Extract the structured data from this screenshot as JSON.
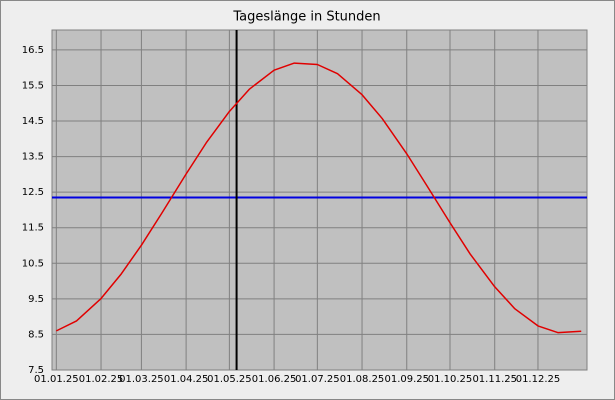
{
  "chart_data": {
    "type": "line",
    "title": "Tageslänge in Stunden",
    "x": [
      "2025-01-01",
      "2025-01-15",
      "2025-02-01",
      "2025-02-15",
      "2025-03-01",
      "2025-03-15",
      "2025-04-01",
      "2025-04-15",
      "2025-05-01",
      "2025-05-15",
      "2025-06-01",
      "2025-06-15",
      "2025-07-01",
      "2025-07-15",
      "2025-08-01",
      "2025-08-15",
      "2025-09-01",
      "2025-09-15",
      "2025-10-01",
      "2025-10-15",
      "2025-11-01",
      "2025-11-15",
      "2025-12-01",
      "2025-12-15",
      "2025-12-31"
    ],
    "series": [
      {
        "color": "#e00000",
        "values": [
          8.6,
          8.88,
          9.51,
          10.2,
          11.01,
          11.9,
          13.01,
          13.89,
          14.77,
          15.4,
          15.93,
          16.13,
          16.09,
          15.83,
          15.24,
          14.57,
          13.58,
          12.68,
          11.64,
          10.76,
          9.84,
          9.22,
          8.74,
          8.55,
          8.59
        ]
      }
    ],
    "reference_line": {
      "y": 12.35,
      "color": "#0000e0"
    },
    "marker_line": {
      "x": "2025-05-06",
      "color": "#000000"
    },
    "xlim": [
      "2024-12-29",
      "2026-01-04"
    ],
    "xticks": [
      {
        "value": "2025-01-01",
        "label": "01.01.25"
      },
      {
        "value": "2025-02-01",
        "label": "01.02.25"
      },
      {
        "value": "2025-03-01",
        "label": "01.03.25"
      },
      {
        "value": "2025-04-01",
        "label": "01.04.25"
      },
      {
        "value": "2025-05-01",
        "label": "01.05.25"
      },
      {
        "value": "2025-06-01",
        "label": "01.06.25"
      },
      {
        "value": "2025-07-01",
        "label": "01.07.25"
      },
      {
        "value": "2025-08-01",
        "label": "01.08.25"
      },
      {
        "value": "2025-09-01",
        "label": "01.09.25"
      },
      {
        "value": "2025-10-01",
        "label": "01.10.25"
      },
      {
        "value": "2025-11-01",
        "label": "01.11.25"
      },
      {
        "value": "2025-12-01",
        "label": "01.12.25"
      }
    ],
    "ylim": [
      7.5,
      17.06
    ],
    "yticks": [
      7.5,
      8.5,
      9.5,
      10.5,
      11.5,
      12.5,
      13.5,
      14.5,
      15.5,
      16.5
    ],
    "grid": true
  }
}
